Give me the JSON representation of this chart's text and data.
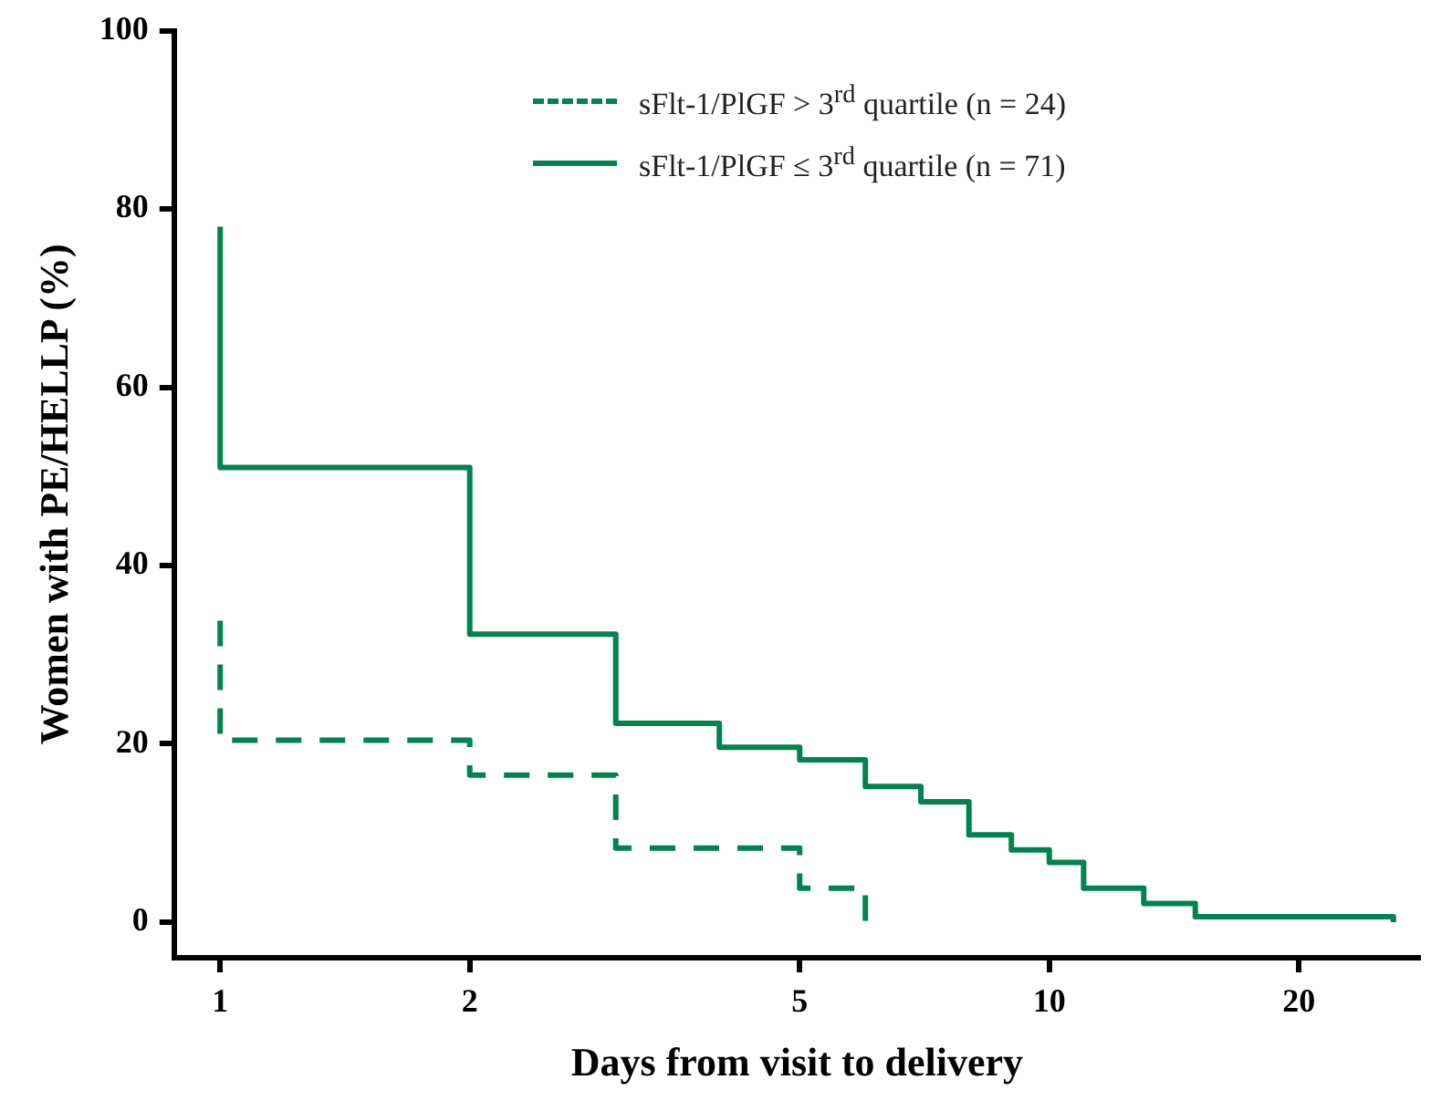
{
  "chart_data": {
    "type": "step",
    "xlabel": "Days from visit to delivery",
    "ylabel": "Women with PE/HELLP (%)",
    "log": "x",
    "xlim": [
      0.88,
      28
    ],
    "xticks": [
      1,
      2,
      5,
      10,
      20
    ],
    "ylim": [
      -4,
      100
    ],
    "yticks": [
      0,
      20,
      40,
      60,
      80,
      100
    ],
    "grid": false,
    "legend": "top right",
    "series": [
      {
        "name": "sFlt-1/PlGF > 3$^{rd}$ quartile (n = 24)",
        "color": "#00834f",
        "line_style": "dashed",
        "x": [
          1,
          1,
          2,
          3,
          5,
          6
        ],
        "values": [
          33.8,
          20.4,
          16.5,
          8.3,
          3.8,
          0
        ]
      },
      {
        "name": "sFlt-1/PlGF ≤ 3$^{rd}$ quartile (n = 71)",
        "color": "#00834f",
        "line_style": "solid",
        "x": [
          1,
          1,
          2,
          3,
          4,
          5,
          6,
          7,
          8,
          9,
          10,
          11,
          13,
          15,
          26
        ],
        "values": [
          78,
          51,
          32.3,
          22.3,
          19.6,
          18.2,
          15.2,
          13.5,
          9.8,
          8.1,
          6.7,
          3.8,
          2.1,
          0.6,
          0
        ]
      }
    ]
  }
}
